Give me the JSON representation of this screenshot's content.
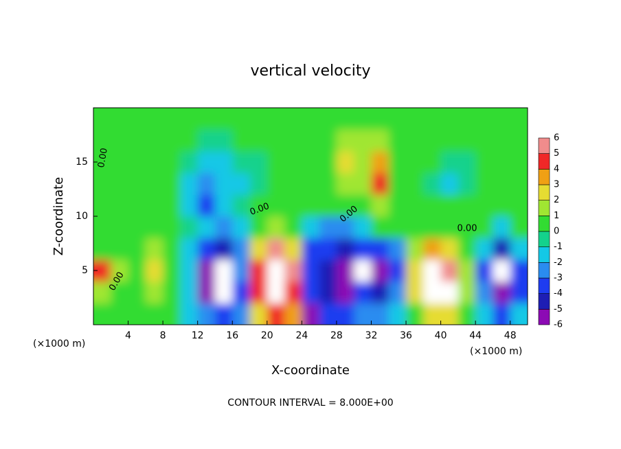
{
  "chart_data": {
    "type": "heatmap",
    "title": "vertical velocity",
    "x_label": "X-coordinate",
    "y_label": "Z-coordinate",
    "x_unit": "(×1000 m)",
    "x_unit_right": "(×1000 m)",
    "footer": "CONTOUR INTERVAL = 8.000E+00",
    "contour_labels": [
      "0.00",
      "0.00",
      "0.00",
      "0.00",
      "0.00"
    ],
    "xlim": [
      0,
      50
    ],
    "ylim": [
      0,
      20
    ],
    "xticks": [
      4,
      8,
      12,
      16,
      20,
      24,
      28,
      32,
      36,
      40,
      44,
      48
    ],
    "yticks": [
      5,
      10,
      15
    ],
    "x": [
      1,
      3,
      5,
      7,
      9,
      11,
      13,
      15,
      17,
      19,
      21,
      23,
      25,
      27,
      29,
      31,
      33,
      35,
      37,
      39,
      41,
      43,
      45,
      47,
      49
    ],
    "y": [
      1,
      3,
      5,
      7,
      9,
      11,
      13,
      15,
      17,
      19
    ],
    "values": [
      [
        1,
        0.5,
        0.5,
        1,
        0.5,
        -1,
        -2,
        -3,
        -2,
        3,
        5,
        4,
        -5,
        -3,
        -3,
        -2,
        -2,
        -1,
        1,
        3,
        3,
        1,
        -1,
        -3,
        -1
      ],
      [
        2,
        1,
        0.5,
        2,
        0.5,
        -1,
        -5,
        -7,
        -3,
        5,
        8,
        5,
        -3,
        -4,
        -5,
        -3,
        -4,
        -2,
        3,
        8,
        7,
        2,
        -2,
        -5,
        -3
      ],
      [
        4.5,
        1.5,
        1,
        3,
        1,
        -1,
        -5,
        -7,
        -2,
        5,
        8,
        6,
        -3,
        -4,
        -5,
        -7,
        -5,
        -3,
        3,
        7,
        6,
        2,
        -3,
        -6.5,
        -3
      ],
      [
        1,
        0.5,
        0.5,
        2,
        0.5,
        -1,
        -3,
        -4,
        -2,
        3,
        6,
        3,
        -3,
        -3,
        -4,
        -3,
        -3,
        -2,
        2,
        4,
        3,
        1,
        -1,
        -4,
        -1
      ],
      [
        0.5,
        1,
        0.5,
        1,
        0.5,
        -0.5,
        -1,
        -2,
        -1,
        1,
        2,
        1,
        -1,
        -2,
        -2,
        -1,
        0.5,
        0.5,
        0.5,
        0.5,
        0.5,
        0.5,
        0.5,
        -1,
        0.5
      ],
      [
        0.5,
        0.5,
        0.5,
        0.5,
        0.5,
        -1,
        -3,
        -1,
        -0.5,
        0.5,
        0.5,
        0.5,
        0.5,
        0.5,
        1,
        1,
        2,
        0.5,
        0.5,
        0.5,
        0.5,
        0.5,
        0.5,
        0.5,
        0.5
      ],
      [
        0.5,
        0.5,
        0.5,
        0.5,
        0.5,
        -1,
        -2.5,
        -1.5,
        -1,
        -0.5,
        0.5,
        0.5,
        0.5,
        1,
        2,
        2,
        4.5,
        1,
        0.5,
        -0.5,
        -1,
        -0.5,
        0.5,
        0.5,
        0.5
      ],
      [
        0.5,
        0.5,
        0.5,
        0.5,
        0.5,
        -0.5,
        -1.5,
        -1,
        -0.5,
        -0.5,
        0.5,
        0.5,
        0.5,
        1,
        3,
        1.5,
        4,
        1,
        0.5,
        0.5,
        -0.5,
        -0.5,
        0.5,
        0.5,
        0.5
      ],
      [
        0.5,
        0.5,
        0.5,
        0.5,
        0.5,
        0.5,
        -0.5,
        -0.5,
        0.5,
        0.5,
        0.5,
        0.5,
        0.5,
        1,
        1.5,
        1.5,
        2,
        1,
        0.5,
        0.5,
        0.5,
        0.5,
        0.5,
        0.5,
        0.5
      ],
      [
        0.5,
        0.5,
        0.5,
        0.5,
        0.5,
        0.5,
        0.5,
        0.5,
        0.5,
        0.5,
        0.5,
        0.5,
        0.5,
        0.5,
        1,
        1,
        1,
        0.5,
        0.5,
        0.5,
        0.5,
        0.5,
        0.5,
        0.5,
        0.5
      ]
    ],
    "levels": [
      -6,
      -5,
      -4,
      -3,
      -2,
      -1,
      0,
      1,
      2,
      3,
      4,
      5,
      6
    ],
    "colors": [
      "#8c0ab4",
      "#1e1eb4",
      "#1e3cf0",
      "#2a8cf0",
      "#14c8e6",
      "#14d28c",
      "#32dc32",
      "#a0e632",
      "#e6dc32",
      "#f0a014",
      "#f02828",
      "#f08c8c"
    ],
    "out_of_range_color": "#ffffff"
  }
}
